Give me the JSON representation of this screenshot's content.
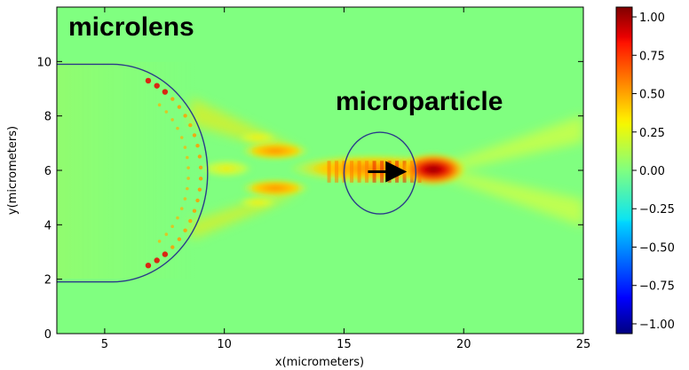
{
  "chart_data": {
    "type": "heatmap",
    "title": "",
    "xlabel": "x(micrometers)",
    "ylabel": "y(micrometers)",
    "xlim": [
      3,
      25
    ],
    "ylim": [
      0,
      12
    ],
    "x_ticks": [
      5,
      10,
      15,
      20,
      25
    ],
    "y_ticks": [
      0,
      2,
      4,
      6,
      8,
      10
    ],
    "colorbar": {
      "range": [
        -1.0,
        1.0
      ],
      "ticks": [
        1.0,
        0.75,
        0.5,
        0.25,
        0.0,
        -0.25,
        -0.5,
        -0.75,
        -1.0
      ],
      "tick_labels": [
        "1.00",
        "0.75",
        "0.50",
        "0.25",
        "0.00",
        "−0.25",
        "−0.50",
        "−0.75",
        "−1.00"
      ],
      "colormap": "jet"
    },
    "background_value": 0.0,
    "annotations": [
      {
        "text": "microlens",
        "x": 3.6,
        "y": 11.3
      },
      {
        "text": "microparticle",
        "x": 15.0,
        "y": 8.6
      }
    ],
    "microlens": {
      "flat_x": 3,
      "flat_to_x": 5.3,
      "center_x": 5.3,
      "center_y": 5.9,
      "radius": 4.0
    },
    "microparticle": {
      "center_x": 16.5,
      "center_y": 5.9,
      "radius_x": 1.5,
      "radius_y": 1.5
    },
    "arrow": {
      "from_x": 16.0,
      "from_y": 5.95,
      "to_x": 17.7,
      "to_y": 5.95
    },
    "hotspots": [
      {
        "x": 18.6,
        "y": 5.95,
        "value": 0.9
      },
      {
        "x": 16.0,
        "y": 5.95,
        "value": 0.55
      },
      {
        "x": 12.1,
        "y": 6.6,
        "value": 0.4
      },
      {
        "x": 12.1,
        "y": 5.3,
        "value": 0.4
      }
    ]
  }
}
